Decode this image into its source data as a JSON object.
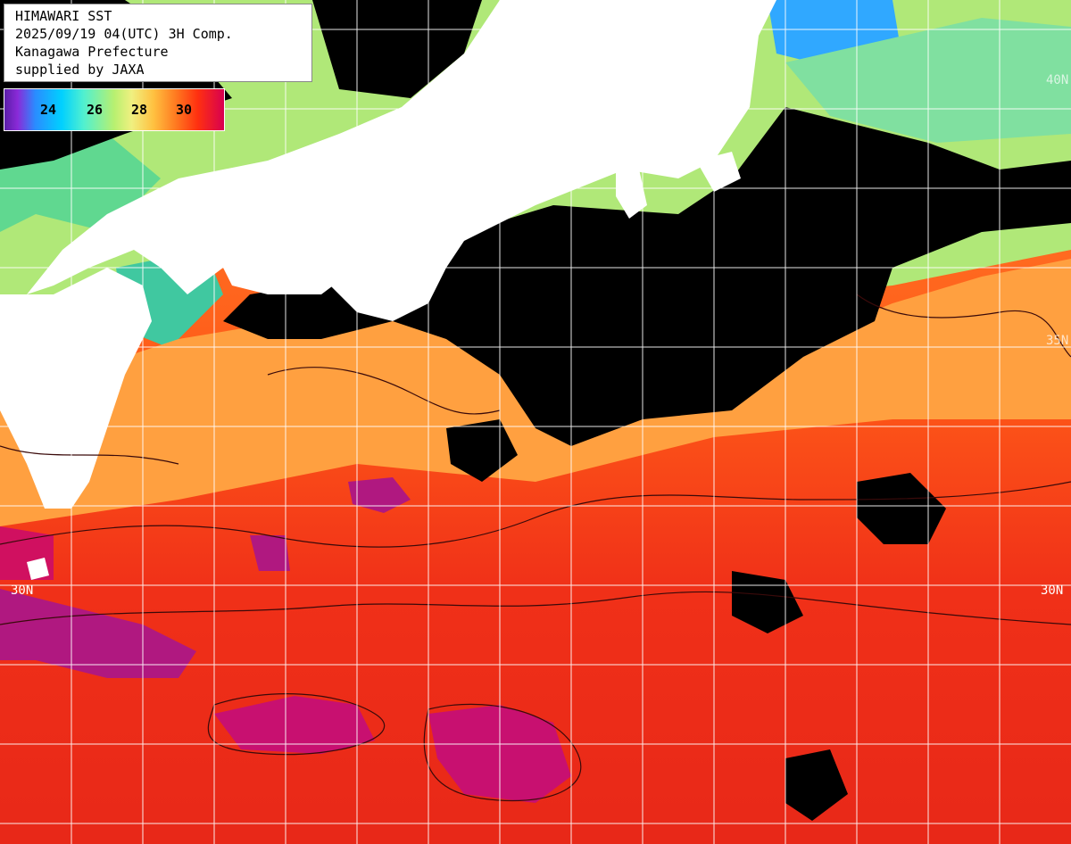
{
  "info": {
    "lines": [
      "HIMAWARI SST",
      "2025/09/19 04(UTC) 3H Comp.",
      "Kanagawa Prefecture",
      "supplied by JAXA"
    ]
  },
  "color_scale": {
    "ticks": [
      "24",
      "26",
      "28",
      "30"
    ]
  },
  "lat_labels": {
    "n30_left": "30N",
    "n30_right": "30N",
    "n35_right": "35N",
    "n40_right": "40N"
  },
  "colors": {
    "land": "#ffffff",
    "cloud_mask": "#000000",
    "grid": "#ffffff",
    "sst_30": "#ff3010",
    "sst_31": "#d80050",
    "sst_28": "#ffa040",
    "sst_26": "#b8f070",
    "sst_24": "#00b8ff"
  }
}
